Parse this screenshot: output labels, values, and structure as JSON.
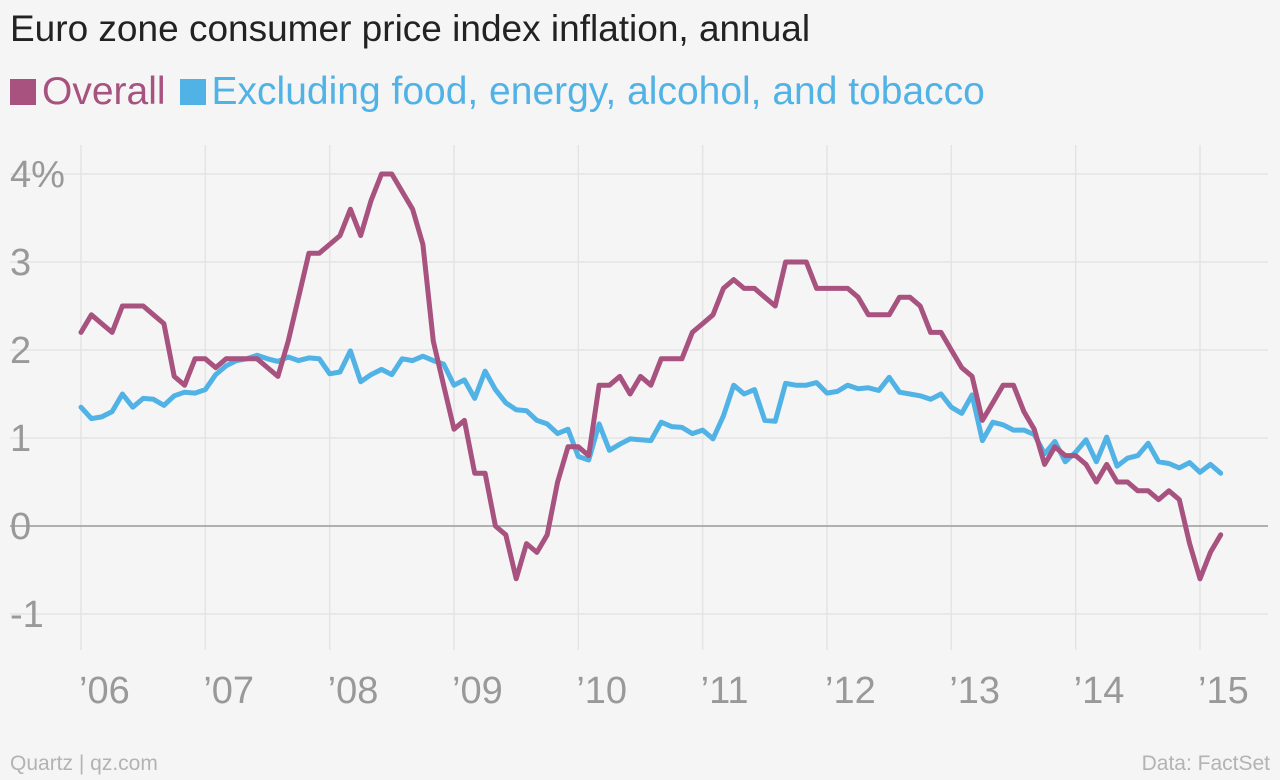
{
  "chart_data": {
    "type": "line",
    "title": "Euro zone consumer price index inflation, annual",
    "xlabel": "",
    "ylabel": "",
    "x_ticks": [
      "’06",
      "’07",
      "’08",
      "’09",
      "’10",
      "’11",
      "’12",
      "’13",
      "’14",
      "’15"
    ],
    "y_ticks": [
      "4%",
      "3",
      "2",
      "1",
      "0",
      "-1"
    ],
    "y_tick_values": [
      4,
      3,
      2,
      1,
      0,
      -1
    ],
    "ylim": [
      -1.4,
      4.4
    ],
    "xlim": [
      2005.92,
      2015.3
    ],
    "x_start": 2006.0,
    "x_step": 0.083333,
    "grid": true,
    "legend_position": "top-left",
    "series": [
      {
        "name": "Overall",
        "color": "#a8527f",
        "values": [
          2.2,
          2.4,
          2.3,
          2.2,
          2.5,
          2.5,
          2.5,
          2.4,
          2.3,
          1.7,
          1.6,
          1.9,
          1.9,
          1.8,
          1.9,
          1.9,
          1.9,
          1.9,
          1.8,
          1.7,
          2.1,
          2.6,
          3.1,
          3.1,
          3.2,
          3.3,
          3.6,
          3.3,
          3.7,
          4.0,
          4.0,
          3.8,
          3.6,
          3.2,
          2.1,
          1.6,
          1.1,
          1.2,
          0.6,
          0.6,
          0.0,
          -0.1,
          -0.6,
          -0.2,
          -0.3,
          -0.1,
          0.5,
          0.9,
          0.9,
          0.8,
          1.6,
          1.6,
          1.7,
          1.5,
          1.7,
          1.6,
          1.9,
          1.9,
          1.9,
          2.2,
          2.3,
          2.4,
          2.7,
          2.8,
          2.7,
          2.7,
          2.6,
          2.5,
          3.0,
          3.0,
          3.0,
          2.7,
          2.7,
          2.7,
          2.7,
          2.6,
          2.4,
          2.4,
          2.4,
          2.6,
          2.6,
          2.5,
          2.2,
          2.2,
          2.0,
          1.8,
          1.7,
          1.2,
          1.4,
          1.6,
          1.6,
          1.3,
          1.1,
          0.7,
          0.9,
          0.8,
          0.8,
          0.7,
          0.5,
          0.7,
          0.5,
          0.5,
          0.4,
          0.4,
          0.3,
          0.4,
          0.3,
          -0.2,
          -0.6,
          -0.3,
          -0.1
        ]
      },
      {
        "name": "Excluding food, energy, alcohol, and tobacco",
        "color": "#51b2e5",
        "values": [
          1.35,
          1.22,
          1.24,
          1.3,
          1.5,
          1.35,
          1.45,
          1.44,
          1.37,
          1.48,
          1.52,
          1.51,
          1.55,
          1.72,
          1.82,
          1.88,
          1.9,
          1.94,
          1.9,
          1.87,
          1.92,
          1.88,
          1.91,
          1.9,
          1.73,
          1.75,
          1.99,
          1.64,
          1.72,
          1.78,
          1.72,
          1.9,
          1.88,
          1.93,
          1.88,
          1.84,
          1.6,
          1.66,
          1.45,
          1.76,
          1.55,
          1.4,
          1.32,
          1.31,
          1.2,
          1.16,
          1.05,
          1.1,
          0.79,
          0.75,
          1.16,
          0.86,
          0.93,
          0.99,
          0.98,
          0.97,
          1.18,
          1.13,
          1.12,
          1.05,
          1.09,
          0.99,
          1.25,
          1.6,
          1.5,
          1.55,
          1.2,
          1.19,
          1.62,
          1.6,
          1.6,
          1.63,
          1.51,
          1.53,
          1.6,
          1.56,
          1.57,
          1.54,
          1.69,
          1.52,
          1.5,
          1.48,
          1.44,
          1.5,
          1.35,
          1.28,
          1.49,
          0.97,
          1.18,
          1.15,
          1.09,
          1.09,
          1.04,
          0.82,
          0.96,
          0.73,
          0.84,
          0.98,
          0.73,
          1.01,
          0.68,
          0.77,
          0.8,
          0.94,
          0.73,
          0.71,
          0.66,
          0.72,
          0.61,
          0.7,
          0.6
        ]
      }
    ]
  },
  "footer": {
    "source_left": "Quartz | qz.com",
    "source_right": "Data: FactSet"
  }
}
